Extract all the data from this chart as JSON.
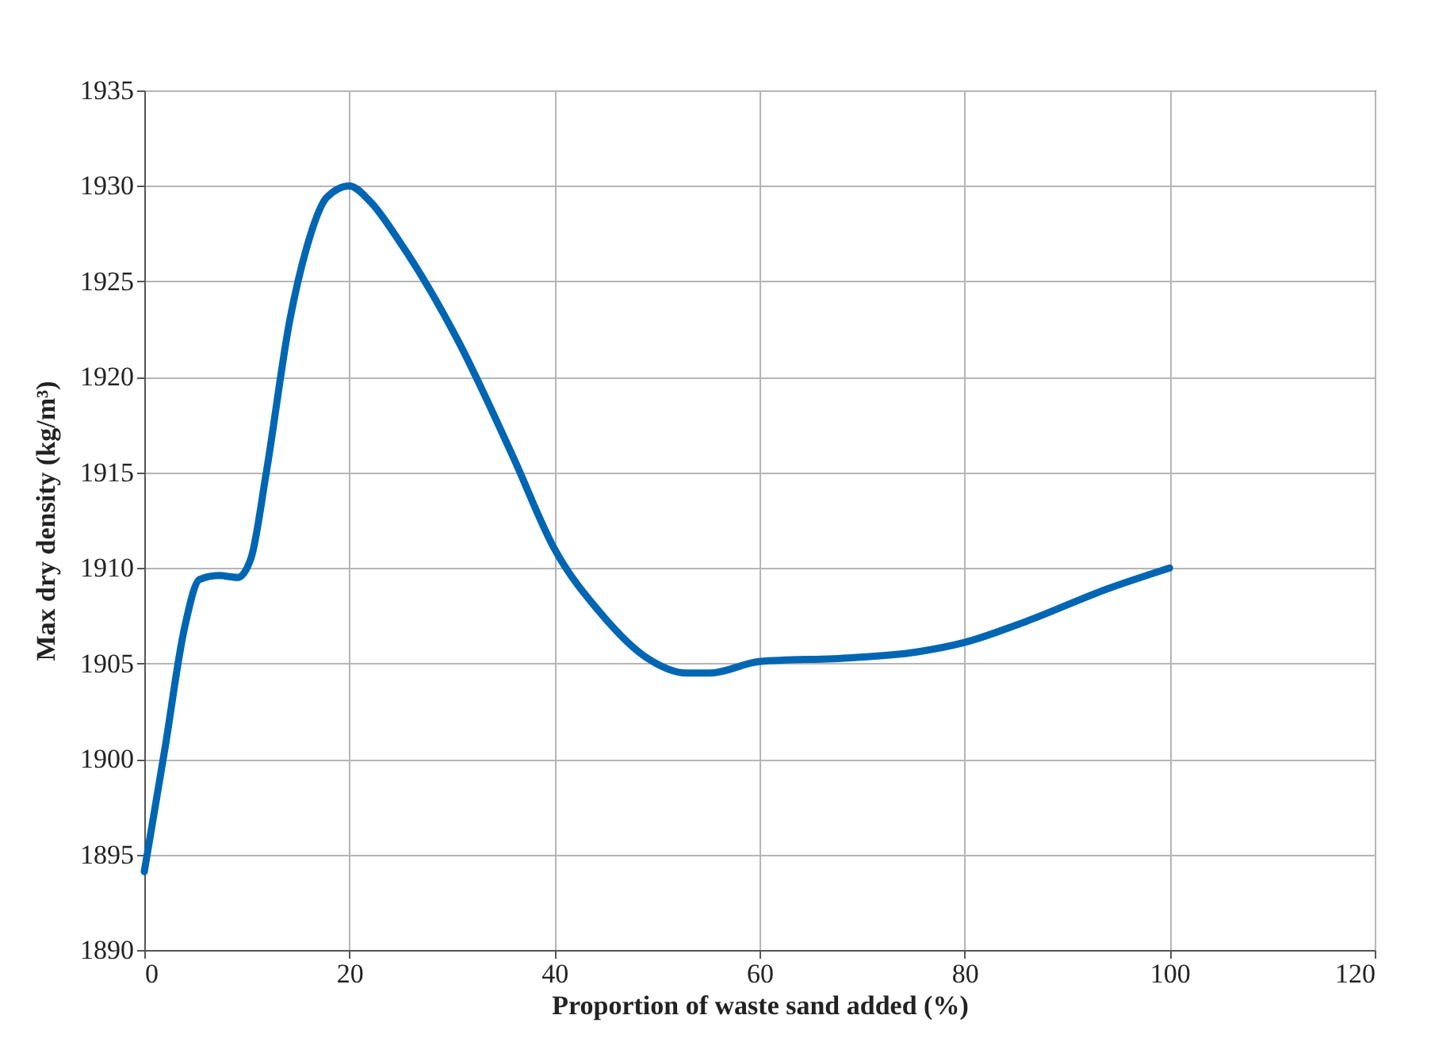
{
  "chart_data": {
    "type": "line",
    "xlabel": "Proportion of waste sand added (%)",
    "ylabel": "Max dry density (kg/m³)",
    "x": [
      0,
      2,
      3.9,
      5.4,
      7.3,
      9.1,
      10.4,
      11.9,
      14.2,
      15.8,
      17.8,
      20,
      22,
      25,
      30.5,
      35.9,
      40,
      44.4,
      49,
      52.9,
      55.2,
      60,
      69,
      75.3,
      80,
      86,
      93.9,
      100
    ],
    "series": [
      {
        "color": "#0066b3",
        "values": [
          1894.1,
          1900.5,
          1906.8,
          1909.4,
          1909.6,
          1909.5,
          1910.5,
          1915,
          1923,
          1926.7,
          1929.4,
          1930,
          1929.2,
          1927,
          1922,
          1915.9,
          1911,
          1907.7,
          1905.3,
          1904.5,
          1904.5,
          1905.1,
          1905.3,
          1905.6,
          1906.1,
          1907.2,
          1908.9,
          1910
        ]
      }
    ],
    "xlim": [
      0,
      120
    ],
    "xticks": [
      0,
      20,
      40,
      60,
      80,
      100,
      120
    ],
    "ylim": [
      1890,
      1935
    ],
    "yticks": [
      1890,
      1895,
      1900,
      1905,
      1910,
      1915,
      1920,
      1925,
      1930,
      1935
    ],
    "grid": true,
    "legend": false,
    "marker": "none",
    "line_style": "solid"
  }
}
